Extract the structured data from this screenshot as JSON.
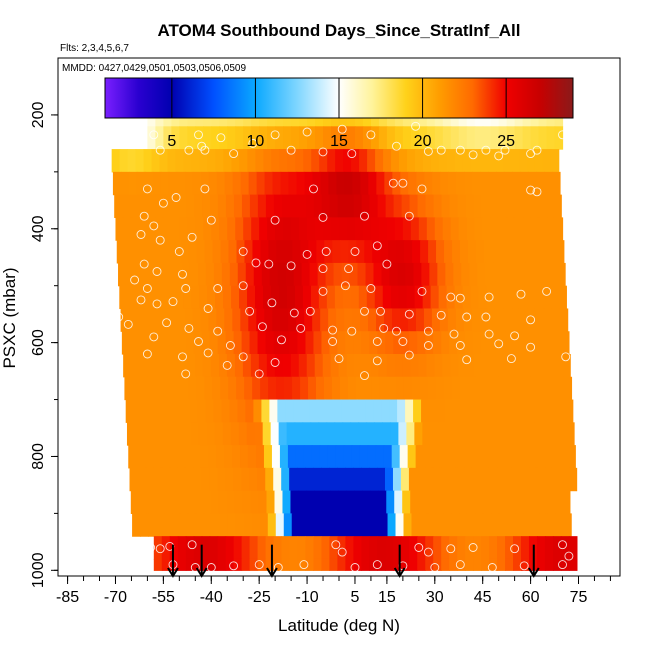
{
  "chart_data": {
    "type": "heatmap",
    "title": "ATOM4 Southbound Days_Since_StratInf_All",
    "subtitle_flights": "Flts: 2,3,4,5,6,7",
    "subtitle_dates": "MMDD: 0427,0429,0501,0503,0506,0509",
    "xlabel": "Latitude (deg N)",
    "ylabel": "PSXC (mbar)",
    "xlim": [
      -88,
      88
    ],
    "ylim": [
      1010,
      100
    ],
    "x_ticks": [
      -85,
      -70,
      -55,
      -40,
      -25,
      -10,
      5,
      15,
      30,
      45,
      60,
      75
    ],
    "x_tick_labels": [
      "-85",
      "-70",
      "-55",
      "-40",
      "-25",
      "-10",
      "5",
      "15",
      "30",
      "45",
      "60",
      "75"
    ],
    "x_minor_step": 5,
    "y_ticks": [
      200,
      400,
      600,
      800,
      1000
    ],
    "y_tick_labels": [
      "200",
      "400",
      "600",
      "800",
      "1000"
    ],
    "colorbar": {
      "min": 1,
      "max": 29,
      "ticks": [
        5,
        10,
        15,
        20,
        25
      ],
      "tick_labels": [
        "5",
        "10",
        "15",
        "20",
        "25"
      ],
      "stops": [
        {
          "v": 1,
          "c": "#7a1fff"
        },
        {
          "v": 3,
          "c": "#2a00d0"
        },
        {
          "v": 5,
          "c": "#0000b0"
        },
        {
          "v": 7.5,
          "c": "#0050ff"
        },
        {
          "v": 10,
          "c": "#0aa8ff"
        },
        {
          "v": 12.5,
          "c": "#7fd6ff"
        },
        {
          "v": 15,
          "c": "#ffffff"
        },
        {
          "v": 17,
          "c": "#fff39a"
        },
        {
          "v": 19,
          "c": "#ffd21a"
        },
        {
          "v": 21,
          "c": "#ff9d00"
        },
        {
          "v": 23,
          "c": "#ff6a00"
        },
        {
          "v": 25,
          "c": "#f00000"
        },
        {
          "v": 27,
          "c": "#c80000"
        },
        {
          "v": 29,
          "c": "#8b1a1a"
        }
      ]
    },
    "arrow_latitudes": [
      -52,
      -43,
      -21,
      19,
      61
    ],
    "sample_points": [
      [
        -66,
        230
      ],
      [
        -58,
        235
      ],
      [
        -44,
        235
      ],
      [
        -43,
        255
      ],
      [
        -37,
        240
      ],
      [
        -27,
        250
      ],
      [
        -20,
        235
      ],
      [
        -10,
        230
      ],
      [
        1,
        225
      ],
      [
        10,
        235
      ],
      [
        24,
        220
      ],
      [
        32,
        262
      ],
      [
        38,
        262
      ],
      [
        46,
        262
      ],
      [
        52,
        262
      ],
      [
        62,
        262
      ],
      [
        70,
        235
      ],
      [
        -73,
        248
      ],
      [
        -56,
        262
      ],
      [
        -47,
        262
      ],
      [
        -42,
        262
      ],
      [
        -33,
        268
      ],
      [
        -15,
        262
      ],
      [
        -5,
        265
      ],
      [
        4,
        268
      ],
      [
        18,
        255
      ],
      [
        28,
        264
      ],
      [
        42,
        270
      ],
      [
        50,
        272
      ],
      [
        60,
        268
      ],
      [
        -60,
        330
      ],
      [
        -55,
        355
      ],
      [
        -51,
        345
      ],
      [
        -42,
        330
      ],
      [
        -20,
        385
      ],
      [
        -8,
        330
      ],
      [
        17,
        320
      ],
      [
        20,
        320
      ],
      [
        26,
        330
      ],
      [
        -61,
        378
      ],
      [
        -58,
        395
      ],
      [
        -40,
        385
      ],
      [
        -5,
        380
      ],
      [
        8,
        378
      ],
      [
        22,
        378
      ],
      [
        60,
        332
      ],
      [
        62,
        335
      ],
      [
        -62,
        410
      ],
      [
        -56,
        420
      ],
      [
        -46,
        415
      ],
      [
        -30,
        440
      ],
      [
        -10,
        445
      ],
      [
        -4,
        440
      ],
      [
        5,
        440
      ],
      [
        12,
        430
      ],
      [
        -50,
        440
      ],
      [
        -61,
        462
      ],
      [
        -57,
        475
      ],
      [
        -49,
        480
      ],
      [
        -26,
        460
      ],
      [
        -22,
        462
      ],
      [
        -15,
        465
      ],
      [
        -5,
        470
      ],
      [
        3,
        470
      ],
      [
        15,
        462
      ],
      [
        -64,
        490
      ],
      [
        -60,
        505
      ],
      [
        -48,
        505
      ],
      [
        -38,
        505
      ],
      [
        -30,
        500
      ],
      [
        -5,
        510
      ],
      [
        2,
        500
      ],
      [
        10,
        505
      ],
      [
        26,
        510
      ],
      [
        35,
        520
      ],
      [
        38,
        522
      ],
      [
        47,
        520
      ],
      [
        57,
        515
      ],
      [
        65,
        510
      ],
      [
        -62,
        525
      ],
      [
        -57,
        532
      ],
      [
        -52,
        528
      ],
      [
        -41,
        540
      ],
      [
        -28,
        545
      ],
      [
        -21,
        530
      ],
      [
        -14,
        548
      ],
      [
        -9,
        545
      ],
      [
        8,
        545
      ],
      [
        13,
        545
      ],
      [
        22,
        550
      ],
      [
        32,
        552
      ],
      [
        40,
        555
      ],
      [
        46,
        555
      ],
      [
        60,
        560
      ],
      [
        -69,
        555
      ],
      [
        -66,
        568
      ],
      [
        -54,
        565
      ],
      [
        -47,
        575
      ],
      [
        -38,
        580
      ],
      [
        -24,
        572
      ],
      [
        -12,
        575
      ],
      [
        -2,
        578
      ],
      [
        4,
        580
      ],
      [
        14,
        575
      ],
      [
        18,
        580
      ],
      [
        28,
        580
      ],
      [
        36,
        585
      ],
      [
        47,
        585
      ],
      [
        55,
        588
      ],
      [
        -58,
        590
      ],
      [
        -44,
        598
      ],
      [
        -34,
        605
      ],
      [
        -18,
        595
      ],
      [
        -2,
        598
      ],
      [
        12,
        598
      ],
      [
        20,
        598
      ],
      [
        28,
        605
      ],
      [
        38,
        605
      ],
      [
        50,
        602
      ],
      [
        60,
        608
      ],
      [
        -35,
        640
      ],
      [
        -20,
        635
      ],
      [
        -60,
        620
      ],
      [
        -49,
        625
      ],
      [
        -41,
        618
      ],
      [
        -30,
        625
      ],
      [
        0,
        628
      ],
      [
        12,
        632
      ],
      [
        22,
        622
      ],
      [
        40,
        630
      ],
      [
        54,
        628
      ],
      [
        71,
        625
      ],
      [
        -48,
        655
      ],
      [
        -25,
        655
      ],
      [
        8,
        658
      ],
      [
        -70,
        955
      ],
      [
        -66,
        958
      ],
      [
        -59,
        960
      ],
      [
        -56,
        962
      ],
      [
        -53,
        958
      ],
      [
        -46,
        955
      ],
      [
        -1,
        955
      ],
      [
        1,
        968
      ],
      [
        25,
        960
      ],
      [
        28,
        968
      ],
      [
        35,
        962
      ],
      [
        42,
        960
      ],
      [
        55,
        962
      ],
      [
        70,
        955
      ],
      [
        -52,
        990
      ],
      [
        -45,
        995
      ],
      [
        -40,
        995
      ],
      [
        -33,
        992
      ],
      [
        -25,
        990
      ],
      [
        -19,
        995
      ],
      [
        -11,
        990
      ],
      [
        5,
        995
      ],
      [
        12,
        990
      ],
      [
        20,
        992
      ],
      [
        30,
        995
      ],
      [
        38,
        990
      ],
      [
        48,
        995
      ],
      [
        58,
        992
      ],
      [
        70,
        990
      ],
      [
        72,
        975
      ],
      [
        -64,
        985
      ],
      [
        -60,
        975
      ]
    ]
  }
}
